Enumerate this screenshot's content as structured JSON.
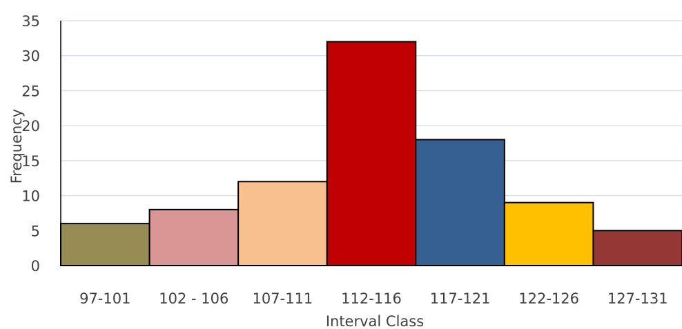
{
  "chart_data": {
    "type": "bar",
    "title": "",
    "xlabel": "Interval Class",
    "ylabel": "Frequency",
    "categories": [
      "97-101",
      "102 - 106",
      "107-111",
      "112-116",
      "117-121",
      "122-126",
      "127-131"
    ],
    "values": [
      6,
      8,
      12,
      32,
      18,
      9,
      5
    ],
    "colors": [
      "#978c53",
      "#d99694",
      "#f9c08f",
      "#c00000",
      "#366092",
      "#ffc000",
      "#953735"
    ],
    "ylim": [
      0,
      35
    ],
    "yticks": [
      "0",
      "5",
      "10",
      "15",
      "20",
      "25",
      "30",
      "35"
    ],
    "grid": true,
    "legend": "none"
  }
}
